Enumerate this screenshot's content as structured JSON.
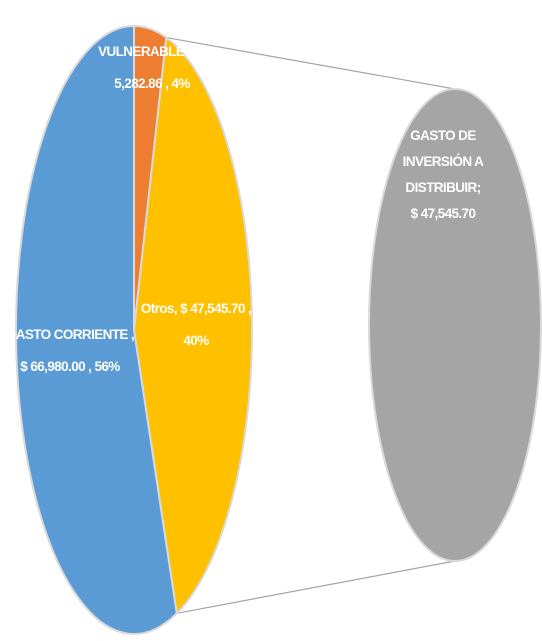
{
  "chart_data": {
    "type": "pie",
    "subtype": "pie-of-pie",
    "main_pie": {
      "slices": [
        {
          "name": "VULNERABLES",
          "value": 5282.86,
          "percent": 4,
          "color": "#ED7D31",
          "label_lines": [
            "VULNERABLES,  $",
            "5,282.86  , 4%"
          ]
        },
        {
          "name": "Otros",
          "value": 47545.7,
          "percent": 40,
          "color": "#FFC000",
          "label_lines": [
            "Otros,  $ 47,545.70  ,",
            "40%"
          ]
        },
        {
          "name": "GASTO CORRIENTE",
          "value": 66980.0,
          "percent": 56,
          "color": "#5B9BD5",
          "label_lines": [
            "GASTO CORRIENTE ,",
            "$ 66,980.00  , 56%"
          ]
        }
      ]
    },
    "secondary_pie": {
      "slices": [
        {
          "name": "GASTO DE INVERSIÓN A DISTRIBUIR",
          "value": 47545.7,
          "color": "#A5A5A5",
          "label_lines": [
            "GASTO DE",
            "INVERSIÓN A",
            "DISTRIBUIR;",
            "$ 47,545.70"
          ]
        }
      ]
    },
    "connector_color": "#A5A5A5",
    "slice_border_color": "#D9D9D9"
  }
}
